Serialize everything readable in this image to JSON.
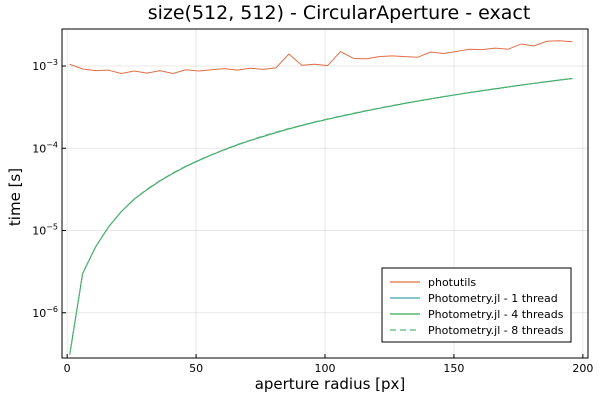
{
  "chart_data": {
    "type": "line",
    "title": "size(512, 512) - CircularAperture - exact",
    "xlabel": "aperture radius [px]",
    "ylabel": "time [s]",
    "xlim": [
      -2,
      202
    ],
    "ylim_log10": [
      -6.55,
      -2.55
    ],
    "yscale": "log10",
    "grid": true,
    "legend_position": "bottom-right",
    "x_ticks": [
      {
        "value": 0,
        "label": "0"
      },
      {
        "value": 50,
        "label": "50"
      },
      {
        "value": 100,
        "label": "100"
      },
      {
        "value": 150,
        "label": "150"
      },
      {
        "value": 200,
        "label": "200"
      }
    ],
    "y_ticks": [
      {
        "exp": -3,
        "label_base": "10",
        "label_exp": "−3"
      },
      {
        "exp": -4,
        "label_base": "10",
        "label_exp": "−4"
      },
      {
        "exp": -5,
        "label_base": "10",
        "label_exp": "−5"
      },
      {
        "exp": -6,
        "label_base": "10",
        "label_exp": "−6"
      }
    ],
    "x": [
      1,
      6,
      11,
      16,
      21,
      26,
      31,
      36,
      41,
      46,
      51,
      56,
      61,
      66,
      71,
      76,
      81,
      86,
      91,
      96,
      101,
      106,
      111,
      116,
      121,
      126,
      131,
      136,
      141,
      146,
      151,
      156,
      161,
      166,
      171,
      176,
      181,
      186,
      191,
      196
    ],
    "series": [
      {
        "name": "photutils",
        "color": "#e26f46",
        "dash": false,
        "values": [
          0.00105,
          0.00092,
          0.00088,
          0.00089,
          0.00081,
          0.00087,
          0.00082,
          0.00088,
          0.00081,
          0.0009,
          0.00087,
          0.0009,
          0.00093,
          0.00089,
          0.00094,
          0.00091,
          0.00095,
          0.0014,
          0.00102,
          0.00105,
          0.00101,
          0.0015,
          0.00124,
          0.00122,
          0.0013,
          0.00133,
          0.0013,
          0.00128,
          0.00148,
          0.00142,
          0.0015,
          0.0016,
          0.00158,
          0.00165,
          0.0016,
          0.00185,
          0.00175,
          0.002,
          0.00203,
          0.00197
        ]
      },
      {
        "name": "Photometry.jl - 1 thread",
        "color": "#3da4ab",
        "dash": false,
        "values": [
          3.1e-07,
          3e-06,
          6.3e-06,
          1.1e-05,
          1.7e-05,
          2.4e-05,
          3.15e-05,
          4e-05,
          4.95e-05,
          6e-05,
          7.1e-05,
          8.3e-05,
          9.6e-05,
          0.00011,
          0.000124,
          0.000139,
          0.000155,
          0.000172,
          0.000189,
          0.000207,
          0.000225,
          0.000244,
          0.000264,
          0.000285,
          0.000306,
          0.000328,
          0.000351,
          0.000374,
          0.000398,
          0.000423,
          0.000448,
          0.000474,
          0.000501,
          0.000528,
          0.000556,
          0.000585,
          0.000614,
          0.000644,
          0.000675,
          0.000705
        ]
      },
      {
        "name": "Photometry.jl - 4 threads",
        "color": "#3aa656",
        "dash": false,
        "values": [
          3.1e-07,
          3e-06,
          6.3e-06,
          1.1e-05,
          1.7e-05,
          2.4e-05,
          3.15e-05,
          4e-05,
          4.95e-05,
          6e-05,
          7.1e-05,
          8.3e-05,
          9.6e-05,
          0.00011,
          0.000124,
          0.000139,
          0.000155,
          0.000172,
          0.000189,
          0.000207,
          0.000225,
          0.000244,
          0.000264,
          0.000285,
          0.000306,
          0.000328,
          0.000351,
          0.000374,
          0.000398,
          0.000423,
          0.000448,
          0.000474,
          0.000501,
          0.000528,
          0.000556,
          0.000585,
          0.000614,
          0.000644,
          0.000675,
          0.000705
        ]
      },
      {
        "name": "Photometry.jl - 8 threads",
        "color": "#56b676",
        "dash": true,
        "values": [
          3.1e-07,
          3e-06,
          6.3e-06,
          1.1e-05,
          1.7e-05,
          2.42e-05,
          3.18e-05,
          4.05e-05,
          5e-05,
          6.05e-05,
          7.15e-05,
          8.35e-05,
          9.65e-05,
          0.000111,
          0.000125,
          0.000141,
          0.000157,
          0.000174,
          0.000191,
          0.000209,
          0.000227,
          0.000246,
          0.000266,
          0.000287,
          0.000308,
          0.00033,
          0.000353,
          0.000376,
          0.0004,
          0.000425,
          0.00045,
          0.000476,
          0.000503,
          0.00053,
          0.000558,
          0.000587,
          0.000616,
          0.000646,
          0.000676,
          0.000706
        ]
      }
    ]
  }
}
